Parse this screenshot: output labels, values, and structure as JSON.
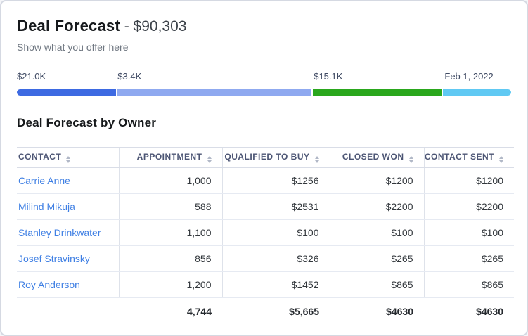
{
  "header": {
    "title": "Deal Forecast",
    "amount": " - $90,303",
    "subtitle": "Show what you offer here"
  },
  "progress": {
    "segments": [
      {
        "label": "$21.0K",
        "color": "#3d6ae2",
        "width_pct": 20.1
      },
      {
        "label": "$3.4K",
        "color": "#8fa9f0",
        "width_pct": 39.4
      },
      {
        "label": "$15.1K",
        "color": "#2aa71d",
        "width_pct": 26.2
      },
      {
        "label": "Feb 1, 2022",
        "color": "#60c9f3",
        "width_pct": 13.8
      }
    ]
  },
  "table": {
    "title": "Deal Forecast by Owner",
    "columns": [
      {
        "label": "CONTACT"
      },
      {
        "label": "APPOINTMENT"
      },
      {
        "label": "QUALIFIED TO BUY"
      },
      {
        "label": "CLOSED WON"
      },
      {
        "label": "CONTACT SENT"
      }
    ],
    "rows": [
      [
        "Carrie Anne",
        "1,000",
        "$1256",
        "$1200",
        "$1200"
      ],
      [
        "Milind Mikuja",
        "588",
        "$2531",
        "$2200",
        "$2200"
      ],
      [
        "Stanley Drinkwater",
        "1,100",
        "$100",
        "$100",
        "$100"
      ],
      [
        "Josef Stravinsky",
        "856",
        "$326",
        "$265",
        "$265"
      ],
      [
        "Roy Anderson",
        "1,200",
        "$1452",
        "$865",
        "$865"
      ]
    ],
    "totals": [
      "",
      "4,744",
      "$5,665",
      "$4630",
      "$4630"
    ]
  }
}
